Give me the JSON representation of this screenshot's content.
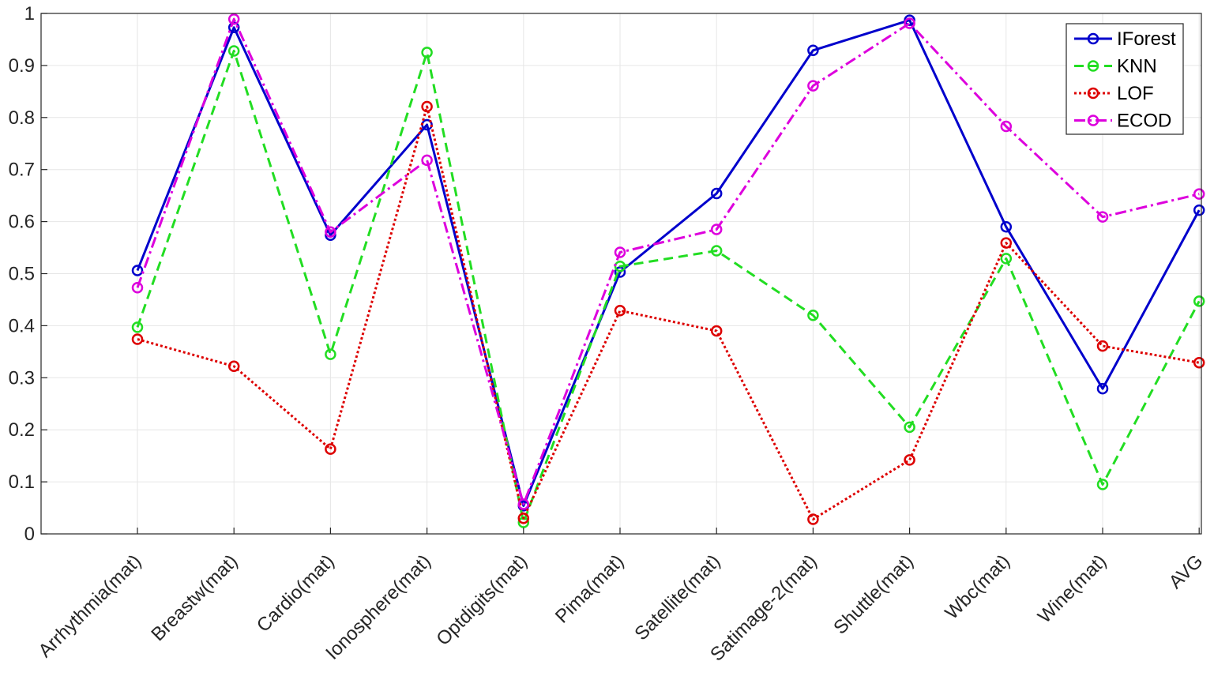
{
  "chart_data": {
    "type": "line",
    "title": "",
    "xlabel": "",
    "ylabel": "",
    "ylim": [
      0,
      1
    ],
    "yticks": [
      "0",
      "0.1",
      "0.2",
      "0.3",
      "0.4",
      "0.5",
      "0.6",
      "0.7",
      "0.8",
      "0.9",
      "1"
    ],
    "grid": true,
    "legend_position": "top-right",
    "categories": [
      "Arrhythmia(mat)",
      "Breastw(mat)",
      "Cardio(mat)",
      "Ionosphere(mat)",
      "Optdigits(mat)",
      "Pima(mat)",
      "Satellite(mat)",
      "Satimage-2(mat)",
      "Shuttle(mat)",
      "Wbc(mat)",
      "Wine(mat)",
      "AVG"
    ],
    "series": [
      {
        "name": "IForest",
        "color": "#0000cc",
        "dash": "solid",
        "values": [
          0.506,
          0.973,
          0.574,
          0.786,
          0.054,
          0.503,
          0.654,
          0.929,
          0.987,
          0.59,
          0.279,
          0.622
        ]
      },
      {
        "name": "KNN",
        "color": "#22dd22",
        "dash": "dashed",
        "values": [
          0.397,
          0.928,
          0.345,
          0.925,
          0.022,
          0.514,
          0.544,
          0.42,
          0.205,
          0.529,
          0.095,
          0.447
        ]
      },
      {
        "name": "LOF",
        "color": "#dd0000",
        "dash": "dotted",
        "values": [
          0.374,
          0.322,
          0.163,
          0.821,
          0.03,
          0.429,
          0.39,
          0.028,
          0.142,
          0.559,
          0.361,
          0.329
        ]
      },
      {
        "name": "ECOD",
        "color": "#dd00dd",
        "dash": "dashdot",
        "values": [
          0.473,
          0.989,
          0.58,
          0.718,
          0.057,
          0.541,
          0.585,
          0.861,
          0.981,
          0.783,
          0.609,
          0.653
        ]
      }
    ]
  }
}
